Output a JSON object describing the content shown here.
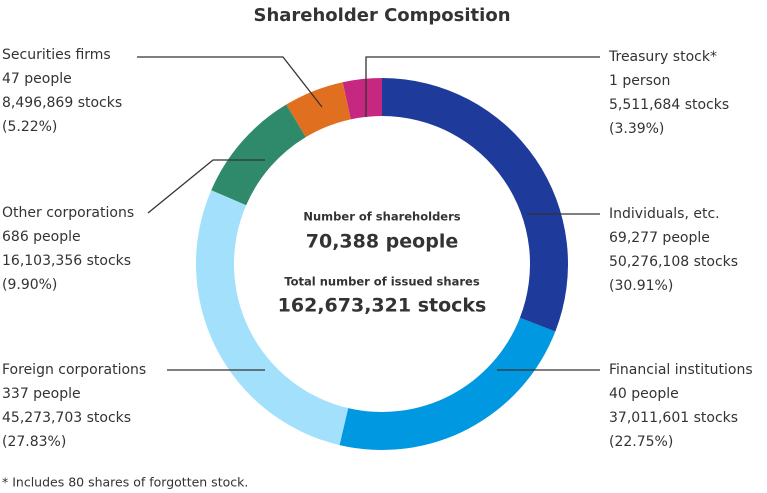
{
  "chart_data": {
    "type": "pie",
    "donut": true,
    "title": "Shareholder Composition",
    "categories": [
      "Individuals, etc.",
      "Financial institutions",
      "Foreign corporations",
      "Other corporations",
      "Securities firms",
      "Treasury stock*"
    ],
    "people": [
      "69,277 people",
      "40 people",
      "337 people",
      "686 people",
      "47 people",
      "1 person"
    ],
    "stocks": [
      "50,276,108 stocks",
      "37,011,601 stocks",
      "45,273,703 stocks",
      "16,103,356 stocks",
      "8,496,869 stocks",
      "5,511,684 stocks"
    ],
    "values": [
      30.91,
      22.75,
      27.83,
      9.9,
      5.22,
      3.39
    ],
    "value_labels": [
      "(30.91%)",
      "(22.75%)",
      "(27.83%)",
      "(9.90%)",
      "(5.22%)",
      "(3.39%)"
    ],
    "colors": [
      "#1e3a9b",
      "#0098e0",
      "#a2e0fb",
      "#2f8a6b",
      "#e06f20",
      "#c7287f"
    ],
    "center_texts": [
      "Number of shareholders",
      "70,388 people",
      "Total number of issued shares",
      "162,673,321 stocks"
    ],
    "footnote": "* Includes 80 shares of forgotten stock."
  }
}
